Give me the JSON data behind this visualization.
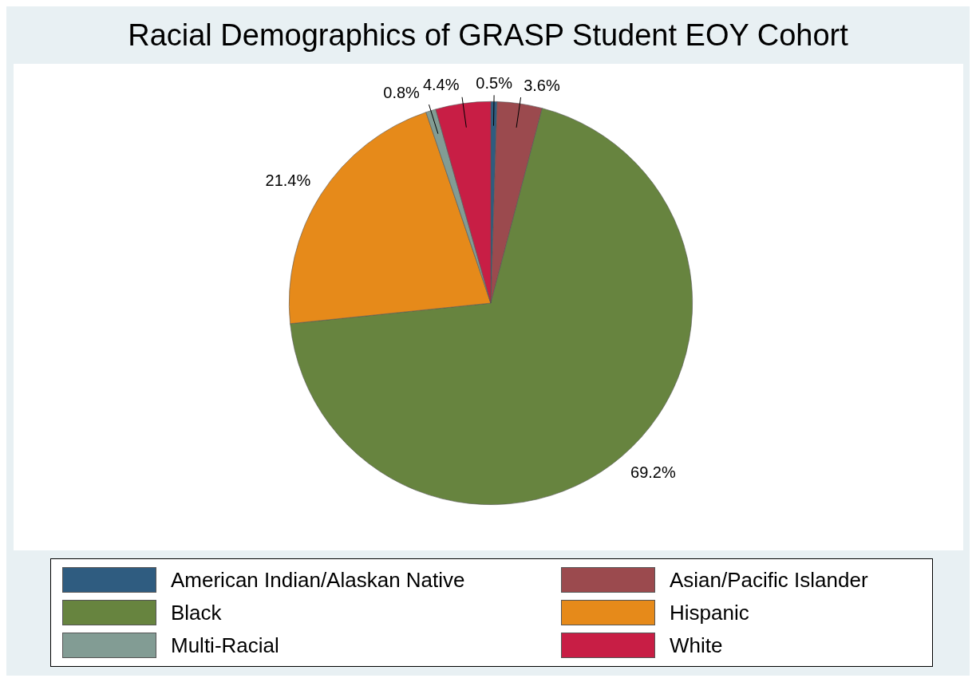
{
  "chart_data": {
    "type": "pie",
    "title": "Racial Demographics of GRASP Student EOY Cohort",
    "categories": [
      "American Indian/Alaskan Native",
      "Asian/Pacific Islander",
      "Black",
      "Hispanic",
      "Multi-Racial",
      "White"
    ],
    "values": [
      0.5,
      3.6,
      69.2,
      21.4,
      0.8,
      4.4
    ],
    "colors": [
      "#2f5c80",
      "#9b4a4e",
      "#67843f",
      "#e68a1a",
      "#829c94",
      "#c81e45"
    ],
    "value_labels": [
      "0.5%",
      "3.6%",
      "69.2%",
      "21.4%",
      "0.8%",
      "4.4%"
    ],
    "legend": "bottom"
  }
}
